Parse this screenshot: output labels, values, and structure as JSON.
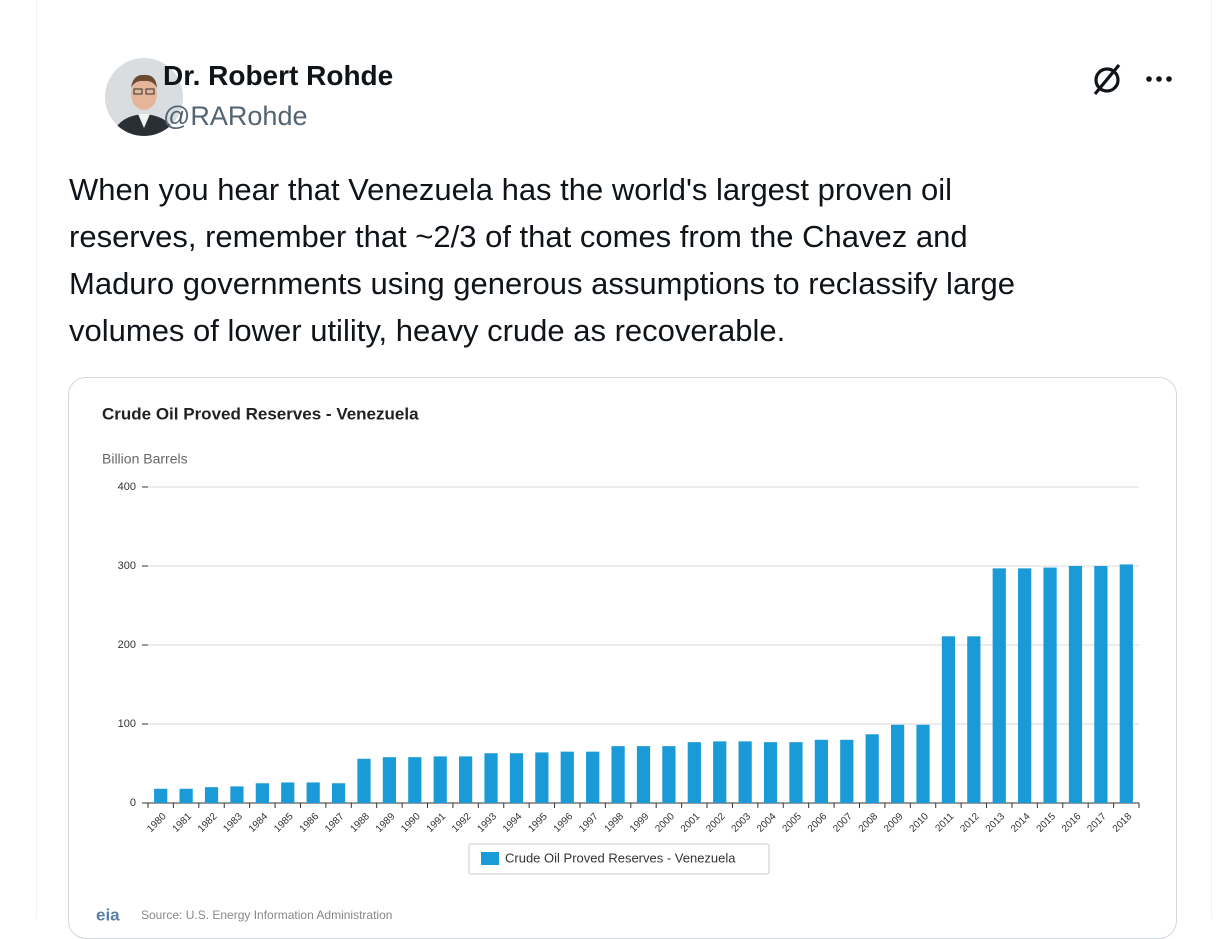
{
  "author": {
    "name": "Dr. Robert Rohde",
    "handle": "@RARohde"
  },
  "text_lines": [
    "When you hear that Venezuela has the world's largest proven oil",
    "reserves, remember that ~2/3 of that comes from the Chavez and",
    "Maduro governments using generous assumptions to reclassify large",
    "volumes of lower utility, heavy crude as recoverable."
  ],
  "chart_data": {
    "type": "bar",
    "title": "Crude Oil Proved Reserves - Venezuela",
    "y_label": "Billion Barrels",
    "categories": [
      "1980",
      "1981",
      "1982",
      "1983",
      "1984",
      "1985",
      "1986",
      "1987",
      "1988",
      "1989",
      "1990",
      "1991",
      "1992",
      "1993",
      "1994",
      "1995",
      "1996",
      "1997",
      "1998",
      "1999",
      "2000",
      "2001",
      "2002",
      "2003",
      "2004",
      "2005",
      "2006",
      "2007",
      "2008",
      "2009",
      "2010",
      "2011",
      "2012",
      "2013",
      "2014",
      "2015",
      "2016",
      "2017",
      "2018"
    ],
    "series": [
      {
        "name": "Crude Oil Proved Reserves - Venezuela",
        "color": "#1a9ad6",
        "values": [
          18,
          18,
          20,
          21,
          25,
          26,
          26,
          25,
          56,
          58,
          58,
          59,
          59,
          63,
          63,
          64,
          65,
          65,
          72,
          72,
          72,
          77,
          78,
          78,
          77,
          77,
          80,
          80,
          87,
          99,
          99,
          211,
          211,
          297,
          297,
          298,
          300,
          300,
          302
        ]
      }
    ],
    "ylim": [
      0,
      400
    ],
    "yticks": [
      0,
      100,
      200,
      300,
      400
    ],
    "grid": true,
    "legend": "bottom",
    "source": "Source: U.S. Energy Information Administration",
    "logo": "eia"
  }
}
